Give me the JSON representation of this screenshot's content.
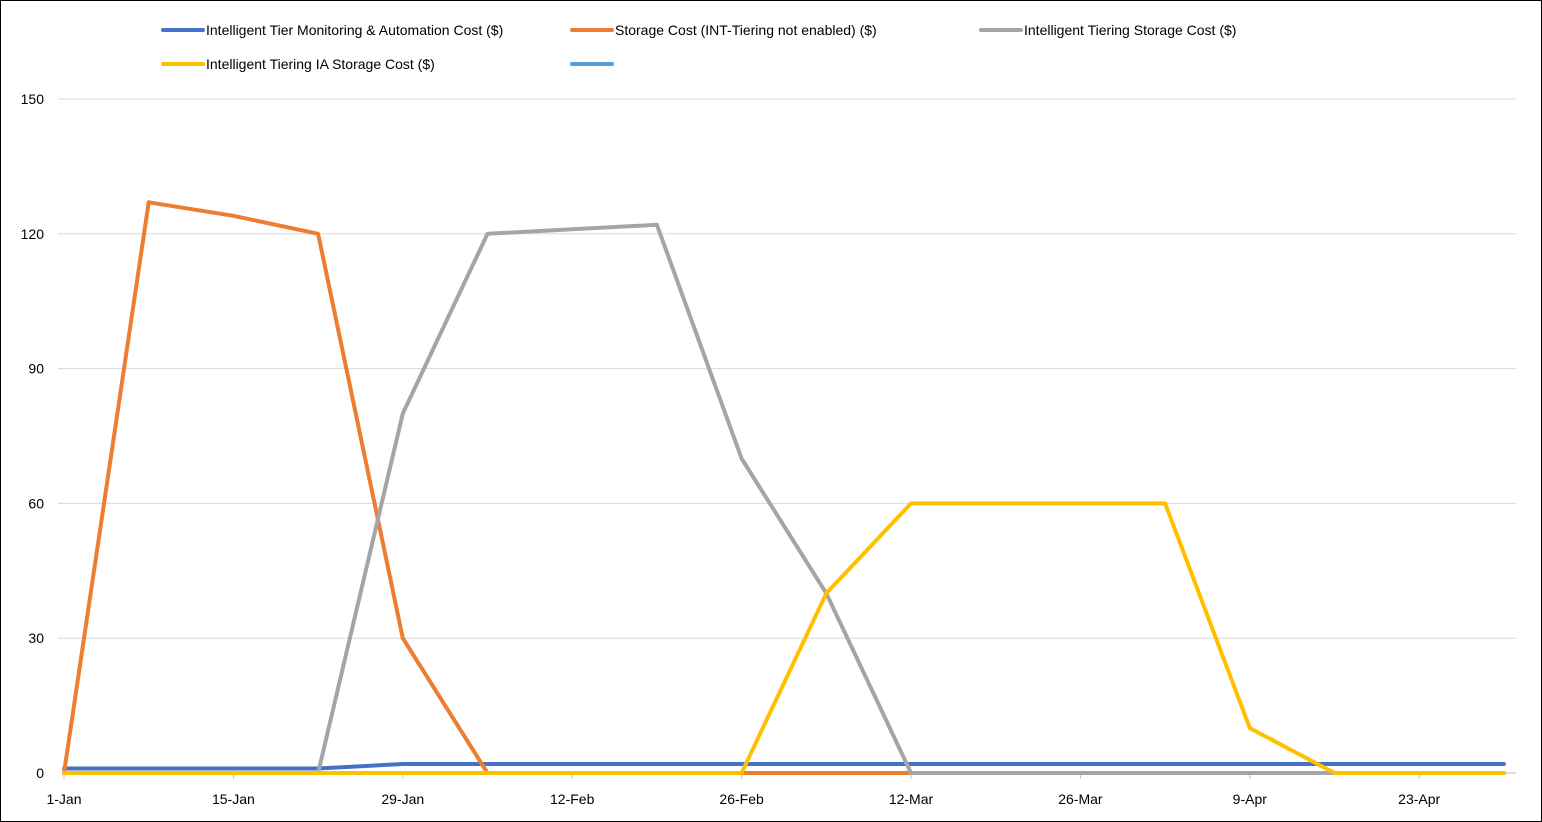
{
  "chart_data": {
    "type": "line",
    "title": "",
    "xlabel": "",
    "ylabel": "",
    "x_axis": {
      "min": "2023-01-01",
      "max": "2023-05-01",
      "ticks": [
        {
          "date": "2023-01-01",
          "label": "1-Jan"
        },
        {
          "date": "2023-01-15",
          "label": "15-Jan"
        },
        {
          "date": "2023-01-29",
          "label": "29-Jan"
        },
        {
          "date": "2023-02-12",
          "label": "12-Feb"
        },
        {
          "date": "2023-02-26",
          "label": "26-Feb"
        },
        {
          "date": "2023-03-12",
          "label": "12-Mar"
        },
        {
          "date": "2023-03-26",
          "label": "26-Mar"
        },
        {
          "date": "2023-04-09",
          "label": "9-Apr"
        },
        {
          "date": "2023-04-23",
          "label": "23-Apr"
        }
      ]
    },
    "y_axis": {
      "min": 0,
      "max": 150,
      "ticks": [
        0,
        30,
        60,
        90,
        120,
        150
      ],
      "grid": true
    },
    "legend_position": "top",
    "series": [
      {
        "name": "Intelligent Tier Monitoring & Automation Cost ($)",
        "color": "#4472C4",
        "points": [
          {
            "x": "2023-01-01",
            "y": 1
          },
          {
            "x": "2023-01-08",
            "y": 1
          },
          {
            "x": "2023-01-15",
            "y": 1
          },
          {
            "x": "2023-01-22",
            "y": 1
          },
          {
            "x": "2023-01-29",
            "y": 2
          },
          {
            "x": "2023-02-05",
            "y": 2
          },
          {
            "x": "2023-02-12",
            "y": 2
          },
          {
            "x": "2023-02-19",
            "y": 2
          },
          {
            "x": "2023-02-26",
            "y": 2
          },
          {
            "x": "2023-03-05",
            "y": 2
          },
          {
            "x": "2023-03-12",
            "y": 2
          },
          {
            "x": "2023-03-19",
            "y": 2
          },
          {
            "x": "2023-03-26",
            "y": 2
          },
          {
            "x": "2023-04-02",
            "y": 2
          },
          {
            "x": "2023-04-09",
            "y": 2
          },
          {
            "x": "2023-04-16",
            "y": 2
          },
          {
            "x": "2023-04-23",
            "y": 2
          },
          {
            "x": "2023-04-30",
            "y": 2
          }
        ]
      },
      {
        "name": "Storage Cost (INT-Tiering not enabled) ($)",
        "color": "#ED7D31",
        "points": [
          {
            "x": "2023-01-01",
            "y": 0
          },
          {
            "x": "2023-01-08",
            "y": 127
          },
          {
            "x": "2023-01-15",
            "y": 124
          },
          {
            "x": "2023-01-22",
            "y": 120
          },
          {
            "x": "2023-01-29",
            "y": 30
          },
          {
            "x": "2023-02-05",
            "y": 0
          },
          {
            "x": "2023-02-12",
            "y": 0
          },
          {
            "x": "2023-02-19",
            "y": 0
          },
          {
            "x": "2023-02-26",
            "y": 0
          },
          {
            "x": "2023-03-05",
            "y": 0
          },
          {
            "x": "2023-03-12",
            "y": 0
          }
        ]
      },
      {
        "name": "Intelligent Tiering Storage Cost ($)",
        "color": "#A5A5A5",
        "points": [
          {
            "x": "2023-01-01",
            "y": 0
          },
          {
            "x": "2023-01-08",
            "y": 0
          },
          {
            "x": "2023-01-15",
            "y": 0
          },
          {
            "x": "2023-01-22",
            "y": 0
          },
          {
            "x": "2023-01-29",
            "y": 80
          },
          {
            "x": "2023-02-05",
            "y": 120
          },
          {
            "x": "2023-02-12",
            "y": 121
          },
          {
            "x": "2023-02-19",
            "y": 122
          },
          {
            "x": "2023-02-26",
            "y": 70
          },
          {
            "x": "2023-03-05",
            "y": 40
          },
          {
            "x": "2023-03-12",
            "y": 0
          },
          {
            "x": "2023-03-19",
            "y": 0
          },
          {
            "x": "2023-03-26",
            "y": 0
          },
          {
            "x": "2023-04-02",
            "y": 0
          },
          {
            "x": "2023-04-09",
            "y": 0
          },
          {
            "x": "2023-04-16",
            "y": 0
          },
          {
            "x": "2023-04-23",
            "y": 0
          },
          {
            "x": "2023-04-30",
            "y": 0
          }
        ]
      },
      {
        "name": "Intelligent Tiering IA Storage Cost ($)",
        "color": "#FFC000",
        "points": [
          {
            "x": "2023-01-01",
            "y": 0
          },
          {
            "x": "2023-01-08",
            "y": 0
          },
          {
            "x": "2023-01-15",
            "y": 0
          },
          {
            "x": "2023-01-22",
            "y": 0
          },
          {
            "x": "2023-01-29",
            "y": 0
          },
          {
            "x": "2023-02-05",
            "y": 0
          },
          {
            "x": "2023-02-12",
            "y": 0
          },
          {
            "x": "2023-02-19",
            "y": 0
          },
          {
            "x": "2023-02-26",
            "y": 0
          },
          {
            "x": "2023-03-05",
            "y": 40
          },
          {
            "x": "2023-03-12",
            "y": 60
          },
          {
            "x": "2023-03-19",
            "y": 60
          },
          {
            "x": "2023-03-26",
            "y": 60
          },
          {
            "x": "2023-04-02",
            "y": 60
          },
          {
            "x": "2023-04-09",
            "y": 10
          },
          {
            "x": "2023-04-16",
            "y": 0
          },
          {
            "x": "2023-04-23",
            "y": 0
          },
          {
            "x": "2023-04-30",
            "y": 0
          }
        ]
      },
      {
        "name": "",
        "color": "#5B9BD5",
        "points": []
      }
    ]
  }
}
